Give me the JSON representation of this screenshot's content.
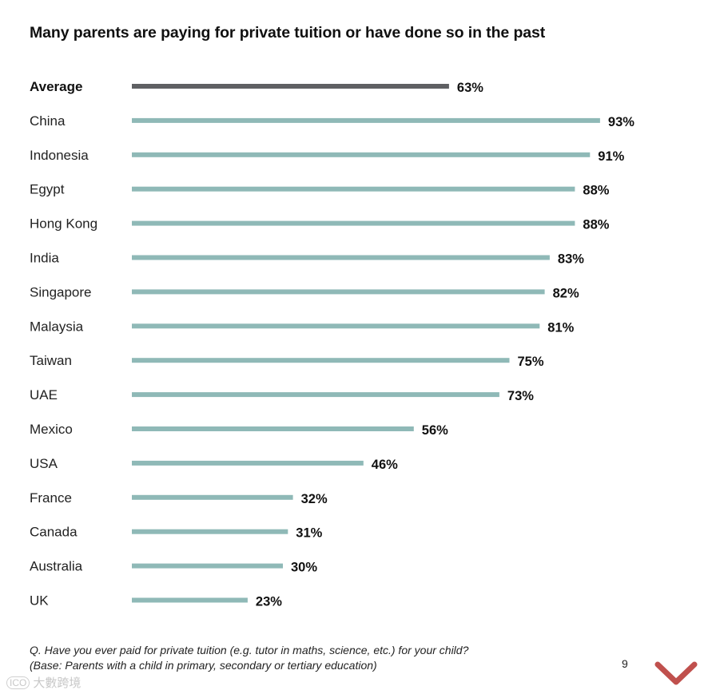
{
  "title": "Many parents are paying for private tuition or have done so in the past",
  "footnote": {
    "line1": "Q. Have you ever paid for private tuition (e.g. tutor in maths, science, etc.) for your child?",
    "line2": "(Base: Parents with a child in primary, secondary or tertiary education)"
  },
  "page_number": "9",
  "watermark": {
    "logo_text": "ICO",
    "text": "大數跨境"
  },
  "colors": {
    "average_bar": "#5f6063",
    "country_bar": "#8fb9b7",
    "accent_chevron": "#c0504d"
  },
  "chart_data": {
    "type": "bar",
    "orientation": "horizontal",
    "title": "Many parents are paying for private tuition or have done so in the past",
    "xlabel": "",
    "ylabel": "",
    "xlim": [
      0,
      100
    ],
    "grid": false,
    "legend": "none",
    "value_suffix": "%",
    "categories": [
      "Average",
      "China",
      "Indonesia",
      "Egypt",
      "Hong Kong",
      "India",
      "Singapore",
      "Malaysia",
      "Taiwan",
      "UAE",
      "Mexico",
      "USA",
      "France",
      "Canada",
      "Australia",
      "UK"
    ],
    "values": [
      63,
      93,
      91,
      88,
      88,
      83,
      82,
      81,
      75,
      73,
      56,
      46,
      32,
      31,
      30,
      23
    ],
    "labels": [
      "63%",
      "93%",
      "91%",
      "88%",
      "88%",
      "83%",
      "82%",
      "81%",
      "75%",
      "73%",
      "56%",
      "46%",
      "32%",
      "31%",
      "30%",
      "23%"
    ],
    "highlight": "Average"
  }
}
